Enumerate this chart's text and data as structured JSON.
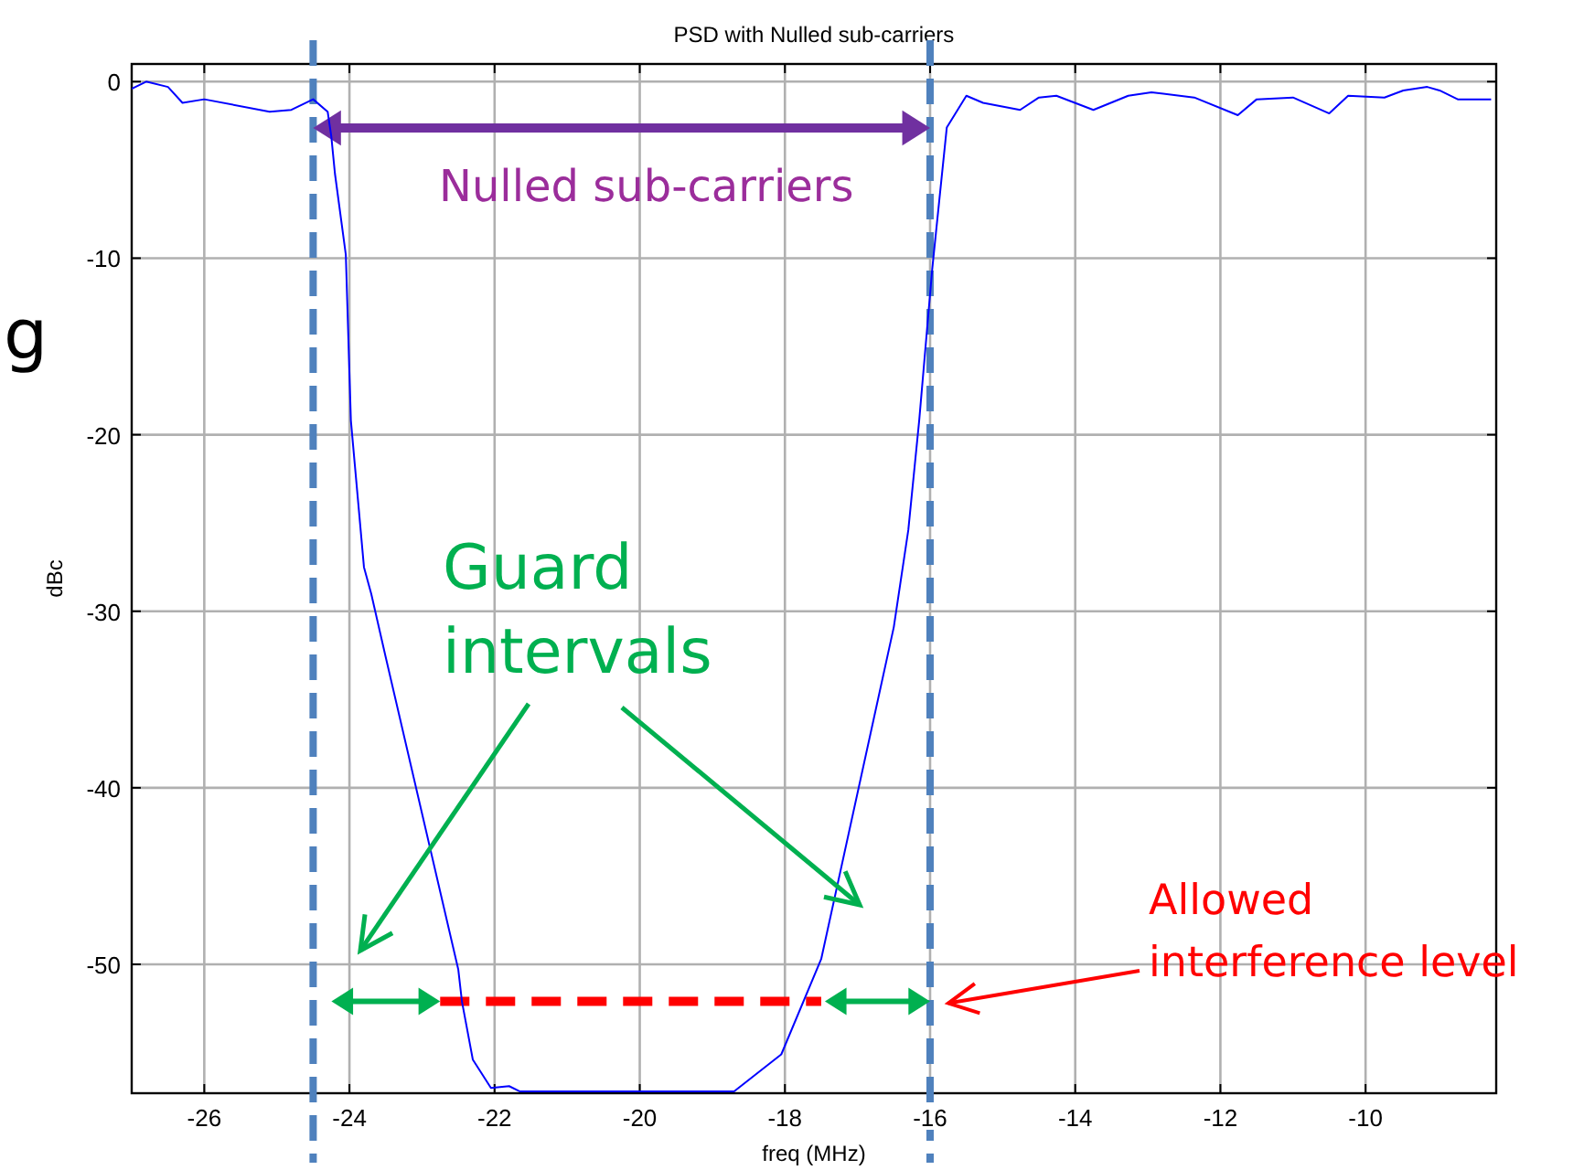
{
  "chart_data": {
    "type": "line",
    "title": "PSD with Nulled sub-carriers",
    "xlabel": "freq (MHz)",
    "ylabel": "dBc",
    "xlim": [
      -27,
      -8.2
    ],
    "ylim": [
      -57.3,
      1
    ],
    "xticks": [
      -26,
      -24,
      -22,
      -20,
      -18,
      -16,
      -14,
      -12,
      -10
    ],
    "yticks": [
      0,
      -10,
      -20,
      -30,
      -40,
      -50
    ],
    "grid": true,
    "series": [
      {
        "color": "#0000ff",
        "x": [
          -27.0,
          -26.8,
          -26.5,
          -26.3,
          -26.0,
          -25.1,
          -24.8,
          -24.5,
          -24.3,
          -24.25,
          -24.2,
          -24.05,
          -23.98,
          -23.8,
          -23.7,
          -23.5,
          -22.5,
          -22.45,
          -22.3,
          -22.05,
          -21.8,
          -21.65,
          -18.7,
          -18.05,
          -17.5,
          -16.5,
          -16.3,
          -16.15,
          -15.97,
          -15.77,
          -15.5,
          -15.27,
          -14.76,
          -14.5,
          -14.26,
          -13.75,
          -13.27,
          -12.95,
          -12.36,
          -11.76,
          -11.5,
          -11.0,
          -10.5,
          -10.24,
          -9.74,
          -9.48,
          -9.15,
          -8.98,
          -8.73,
          -8.27
        ],
        "values": [
          -0.4,
          0,
          -0.3,
          -1.2,
          -1.0,
          -1.7,
          -1.6,
          -1.0,
          -1.7,
          -3.1,
          -5.2,
          -9.8,
          -19.2,
          -27.5,
          -29.0,
          -32.6,
          -50.3,
          -52.1,
          -55.4,
          -57.0,
          -56.9,
          -57.2,
          -57.2,
          -55.1,
          -49.7,
          -30.9,
          -25.4,
          -19.2,
          -10.6,
          -2.6,
          -0.8,
          -1.2,
          -1.6,
          -0.9,
          -0.8,
          -1.6,
          -0.8,
          -0.6,
          -0.9,
          -1.9,
          -1.0,
          -0.9,
          -1.8,
          -0.8,
          -0.9,
          -0.5,
          -0.3,
          -0.5,
          -1.0,
          -1.0
        ]
      },
      {
        "color": "#ff0000",
        "line_style": "dashed",
        "x": [
          -22.75,
          -17.5
        ],
        "values": [
          -52.1,
          -52.1
        ]
      }
    ],
    "ref_lines": [
      {
        "axis": "x",
        "value": -24.5,
        "color": "#4f81bd",
        "line_style": "dashed"
      },
      {
        "axis": "x",
        "value": -16,
        "color": "#4f81bd",
        "line_style": "dashed"
      }
    ],
    "annotations": [
      "g",
      "Nulled sub-carriers",
      "Guard intervals",
      "Allowed interference level"
    ]
  }
}
